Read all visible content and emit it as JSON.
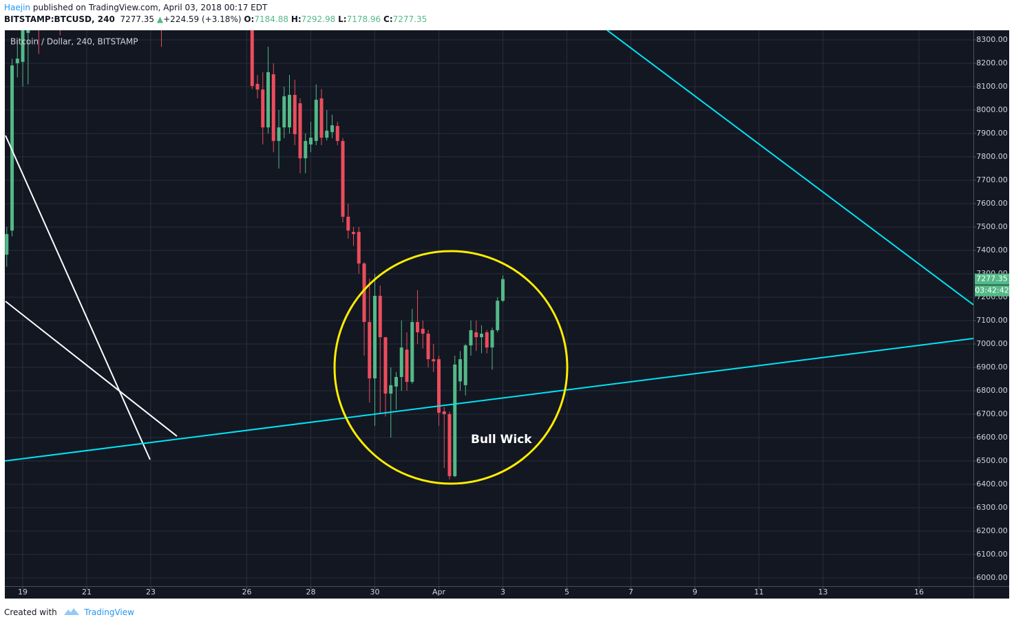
{
  "header": {
    "author": "Haejin",
    "published": "published on TradingView.com, April 03, 2018 00:17 EDT",
    "symbol": "BITSTAMP:BTCUSD, 240",
    "arrow": "▲",
    "change": "+224.59 (+3.18%)",
    "o_label": "O:",
    "h_label": "H:",
    "l_label": "L:",
    "c_label": "C:"
  },
  "chart_data": {
    "type": "candlestick",
    "title": "Bitcoin / Dollar, 240, BITSTAMP",
    "x": [
      18.5,
      18.667,
      18.833,
      19,
      19.167,
      19.5,
      20.167,
      23.333,
      26.167,
      26.333,
      26.5,
      26.667,
      26.833,
      27,
      27.167,
      27.333,
      27.5,
      27.667,
      27.833,
      28,
      28.167,
      28.333,
      28.5,
      28.667,
      28.833,
      29,
      29.167,
      29.333,
      29.5,
      29.667,
      29.833,
      30,
      30.167,
      30.333,
      30.5,
      30.667,
      30.833,
      31,
      31.167,
      31.333,
      31.5,
      31.667,
      31.833,
      32,
      32.167,
      32.333,
      32.5,
      32.667,
      32.833,
      33,
      33.167,
      33.333,
      33.5,
      33.667,
      33.833,
      34
    ],
    "open": [
      7382,
      7485,
      8200,
      8206,
      8330,
      8400,
      8420,
      8400,
      8350,
      8112,
      8088,
      7926,
      8153,
      7868,
      7926,
      7926,
      8065,
      8029,
      7794,
      7853,
      7868,
      8050,
      7882,
      7906,
      7932,
      7868,
      7544,
      7479,
      7479,
      7344,
      7094,
      6853,
      7206,
      7029,
      6788,
      6818,
      6859,
      6976,
      6838,
      7094,
      7065,
      7044,
      6935,
      6935,
      6712,
      6700,
      6435,
      6840,
      6824,
      6994,
      7050,
      7029,
      7050,
      6985,
      7059,
      7184.88
    ],
    "high": [
      7500,
      8220,
      8300,
      8400,
      8400,
      8450,
      8450,
      8450,
      8400,
      8150,
      8162,
      8271,
      8200,
      8000,
      8100,
      8150,
      8130,
      8050,
      7900,
      7950,
      8110,
      8090,
      8000,
      7980,
      7950,
      7880,
      7600,
      7500,
      7500,
      7350,
      7280,
      7300,
      7250,
      7030,
      6900,
      6880,
      7100,
      7050,
      7150,
      7230,
      7100,
      7060,
      7000,
      6950,
      6730,
      6710,
      6950,
      6970,
      7000,
      7100,
      7100,
      7080,
      7060,
      7070,
      7200,
      7292.98
    ],
    "low": [
      7330,
      7460,
      8140,
      8100,
      8110,
      8240,
      8320,
      8270,
      8090,
      8050,
      7853,
      7900,
      7820,
      7750,
      7880,
      7900,
      7850,
      7730,
      7730,
      7820,
      7850,
      7850,
      7870,
      7880,
      7850,
      7520,
      7450,
      7420,
      7300,
      6950,
      6750,
      6650,
      6700,
      6690,
      6600,
      6720,
      6800,
      6800,
      6830,
      7000,
      6980,
      6900,
      6880,
      6650,
      6470,
      6420,
      6430,
      6800,
      6780,
      6950,
      6970,
      6960,
      6960,
      6890,
      7050,
      7178.96
    ],
    "close": [
      7470,
      8191,
      8220,
      8350,
      8380,
      8350,
      8380,
      8380,
      8103,
      8088,
      7926,
      8162,
      7868,
      7926,
      8059,
      8065,
      7897,
      7794,
      7868,
      7882,
      8044,
      7882,
      7912,
      7935,
      7868,
      7544,
      7485,
      7470,
      7344,
      7094,
      6853,
      7206,
      7029,
      6788,
      6824,
      6859,
      6985,
      6838,
      7094,
      7050,
      7044,
      6935,
      6926,
      6706,
      6700,
      6435,
      6912,
      6935,
      6994,
      7059,
      7029,
      7044,
      6985,
      7059,
      7185,
      7277.35
    ],
    "up_color": "#53b987",
    "down_color": "#eb4d5c",
    "grid": true,
    "xlim": [
      18.44,
      48.7
    ],
    "ylim": [
      5964.7,
      8341.2
    ],
    "xticks": [
      19,
      21,
      23,
      26,
      28,
      30,
      {
        "value": 32,
        "label": "Apr"
      },
      {
        "value": 34,
        "label": "3"
      },
      {
        "value": 36,
        "label": "5"
      },
      {
        "value": 38,
        "label": "7"
      },
      {
        "value": 40,
        "label": "9"
      },
      {
        "value": 42,
        "label": "11"
      },
      {
        "value": 44,
        "label": "13"
      },
      {
        "value": 47,
        "label": "16"
      }
    ],
    "yticks": [
      {
        "value": 6000,
        "label": "6000.00"
      },
      {
        "value": 6100,
        "label": "6100.00"
      },
      {
        "value": 6200,
        "label": "6200.00"
      },
      {
        "value": 6300,
        "label": "6300.00"
      },
      {
        "value": 6400,
        "label": "6400.00"
      },
      {
        "value": 6500,
        "label": "6500.00"
      },
      {
        "value": 6600,
        "label": "6600.00"
      },
      {
        "value": 6700,
        "label": "6700.00"
      },
      {
        "value": 6800,
        "label": "6800.00"
      },
      {
        "value": 6900,
        "label": "6900.00"
      },
      {
        "value": 7000,
        "label": "7000.00"
      },
      {
        "value": 7100,
        "label": "7100.00"
      },
      {
        "value": 7200,
        "label": "7200.00"
      },
      {
        "value": 7300,
        "label": "7300.00"
      },
      {
        "value": 7400,
        "label": "7400.00"
      },
      {
        "value": 7500,
        "label": "7500.00"
      },
      {
        "value": 7600,
        "label": "7600.00"
      },
      {
        "value": 7700,
        "label": "7700.00"
      },
      {
        "value": 7800,
        "label": "7800.00"
      },
      {
        "value": 7900,
        "label": "7900.00"
      },
      {
        "value": 8000,
        "label": "8000.00"
      },
      {
        "value": 8100,
        "label": "8100.00"
      },
      {
        "value": 8200,
        "label": "8200.00"
      },
      {
        "value": 8300,
        "label": "8300.00"
      }
    ],
    "countdown": "03:42:42",
    "annotation": "Bull Wick"
  },
  "footer": {
    "created": "Created with",
    "brand": "TradingView"
  }
}
